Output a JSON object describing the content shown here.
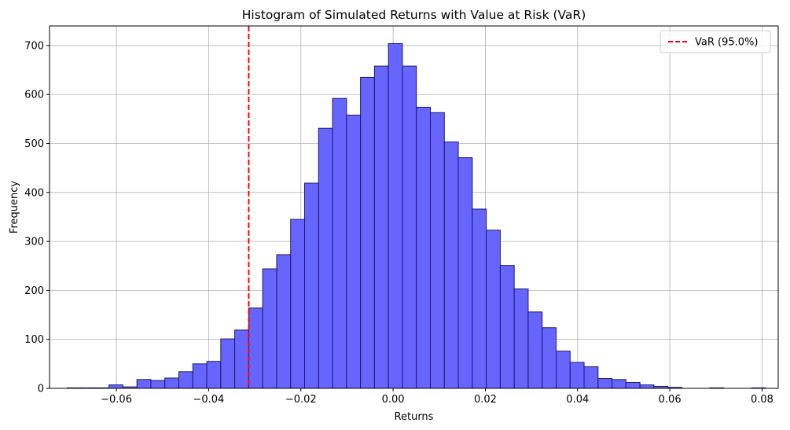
{
  "chart_data": {
    "type": "histogram",
    "title": "Histogram of Simulated Returns with Value at Risk (VaR)",
    "xlabel": "Returns",
    "ylabel": "Frequency",
    "xlim": [
      -0.0745,
      0.0835
    ],
    "ylim": [
      0,
      740
    ],
    "xticks": [
      -0.06,
      -0.04,
      -0.02,
      0.0,
      0.02,
      0.04,
      0.06,
      0.08
    ],
    "xtick_labels": [
      "−0.06",
      "−0.04",
      "−0.02",
      "0.00",
      "0.02",
      "0.04",
      "0.06",
      "0.08"
    ],
    "yticks": [
      0,
      100,
      200,
      300,
      400,
      500,
      600,
      700
    ],
    "ytick_labels": [
      "0",
      "100",
      "200",
      "300",
      "400",
      "500",
      "600",
      "700"
    ],
    "grid": true,
    "bin_start": -0.0707,
    "bin_width": 0.00303,
    "counts": [
      1,
      1,
      1,
      7,
      3,
      18,
      16,
      21,
      34,
      50,
      55,
      101,
      119,
      164,
      244,
      273,
      345,
      419,
      531,
      592,
      558,
      635,
      658,
      704,
      658,
      574,
      563,
      503,
      471,
      366,
      323,
      251,
      203,
      156,
      124,
      76,
      53,
      44,
      20,
      18,
      12,
      7,
      4,
      2,
      0,
      0,
      1,
      0,
      0,
      1
    ],
    "bar_color": "#6666ff",
    "bar_edge_color": "#1a1a66",
    "var_line": {
      "x": -0.0313,
      "color": "#ff0000",
      "label": "VaR (95.0%)"
    },
    "legend_position": "upper right"
  }
}
